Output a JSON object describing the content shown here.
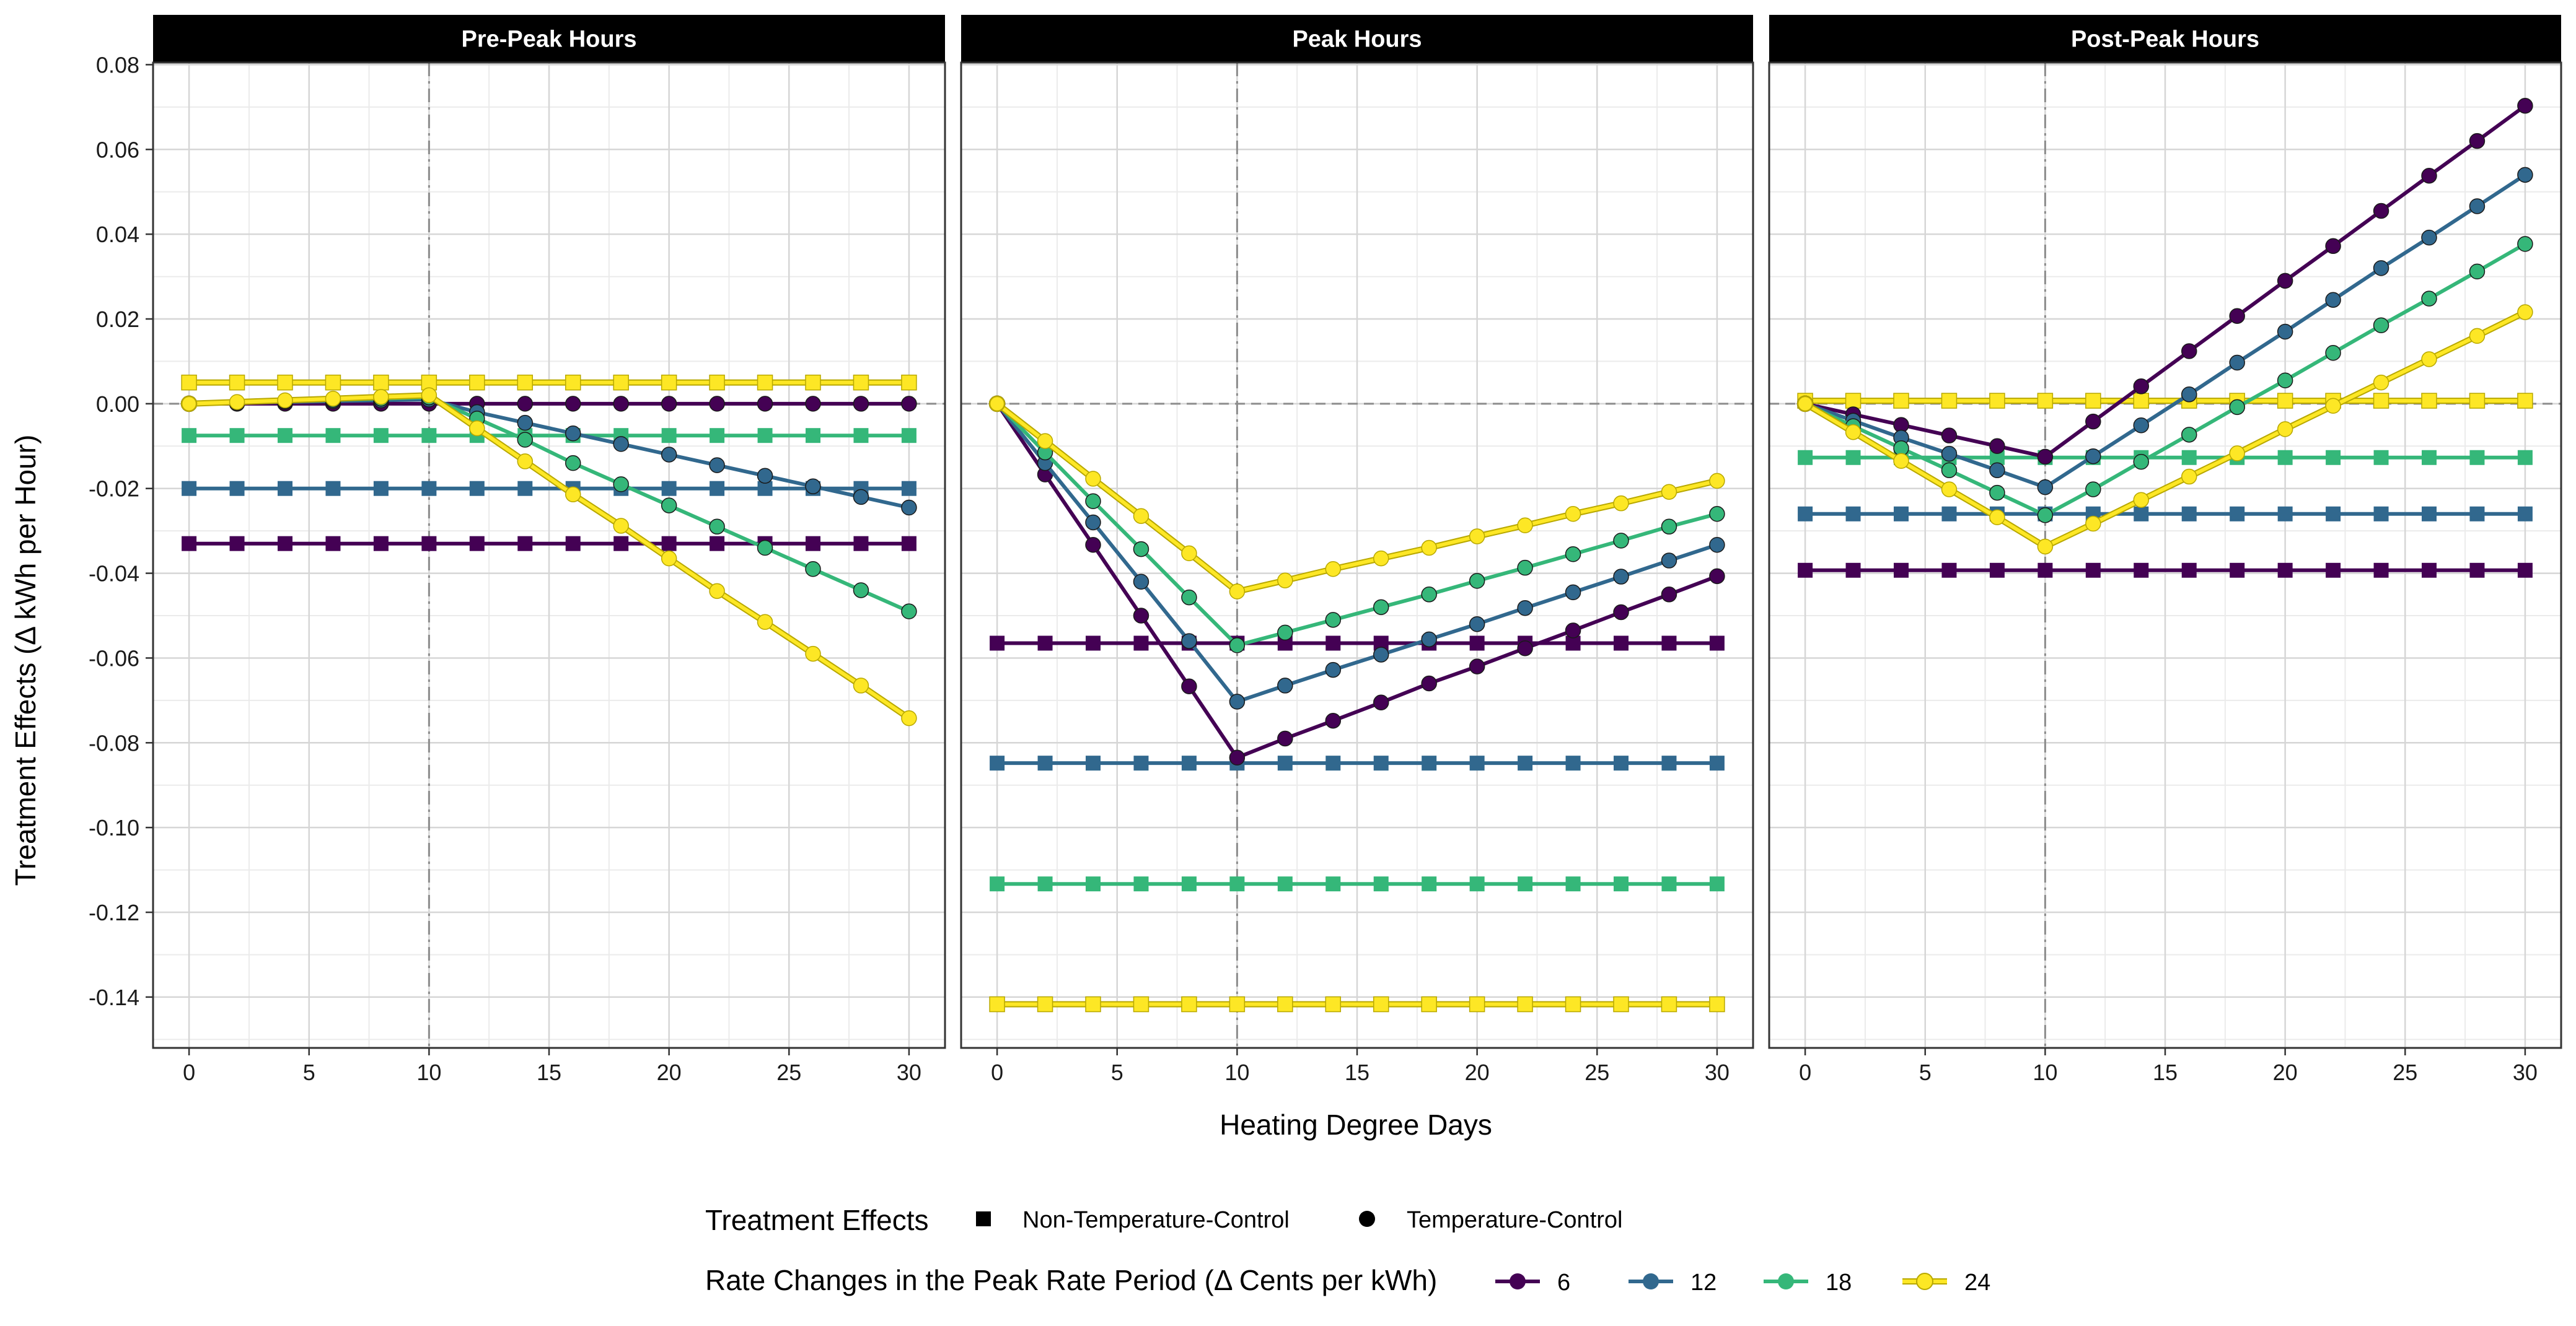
{
  "chart_data": {
    "type": "line",
    "facets": [
      "Pre-Peak Hours",
      "Peak Hours",
      "Post-Peak Hours"
    ],
    "xlabel": "Heating Degree Days",
    "ylabel": "Treatment Effects (Δ kWh per Hour)",
    "xlim": [
      -1.5,
      31.5
    ],
    "ylim": [
      -0.152,
      0.0805
    ],
    "x_ticks": [
      0,
      5,
      10,
      15,
      20,
      25,
      30
    ],
    "x_tick_labels": [
      "0",
      "5",
      "10",
      "15",
      "20",
      "25",
      "30"
    ],
    "y_ticks": [
      0.08,
      0.06,
      0.04,
      0.02,
      0.0,
      -0.02,
      -0.04,
      -0.06,
      -0.08,
      -0.1,
      -0.12,
      -0.14
    ],
    "y_tick_labels": [
      "0.08",
      "0.06",
      "0.04",
      "0.02",
      "0.00",
      "-0.02",
      "-0.04",
      "-0.06",
      "-0.08",
      "-0.10",
      "-0.12",
      "-0.14"
    ],
    "grid": true,
    "reference_lines": {
      "vertical_x": 10,
      "horizontal_y": 0
    },
    "x": [
      0,
      2,
      4,
      6,
      8,
      10,
      12,
      14,
      16,
      18,
      20,
      22,
      24,
      26,
      28,
      30
    ],
    "legend": {
      "placement": "bottom",
      "shape_title": "Treatment Effects",
      "shape_entries": [
        {
          "label": "Non-Temperature-Control",
          "shape": "square"
        },
        {
          "label": "Temperature-Control",
          "shape": "circle"
        }
      ],
      "color_title": "Rate Changes in the Peak Rate Period  (Δ Cents per kWh)",
      "color_entries": [
        {
          "label": "6",
          "color": "#440154"
        },
        {
          "label": "12",
          "color": "#31688e"
        },
        {
          "label": "18",
          "color": "#35b779"
        },
        {
          "label": "24",
          "color": "#fde725"
        }
      ]
    },
    "series_colors": {
      "6": "#440154",
      "12": "#31688e",
      "18": "#35b779",
      "24": "#fde725"
    },
    "panels": [
      {
        "facet": "Pre-Peak Hours",
        "non_temperature_control": {
          "6": -0.033,
          "12": -0.02,
          "18": -0.0075,
          "24": 0.005
        },
        "temperature_control": {
          "6": [
            0.0,
            0.0,
            0.0,
            0.0,
            0.0,
            0.0,
            0.0,
            0.0,
            0.0,
            0.0,
            0.0,
            0.0,
            0.0,
            0.0,
            0.0,
            0.0
          ],
          "12": [
            0.0,
            0.0002,
            0.0004,
            0.0006,
            0.0008,
            0.001,
            -0.002,
            -0.0045,
            -0.007,
            -0.0095,
            -0.012,
            -0.0145,
            -0.017,
            -0.0195,
            -0.022,
            -0.0245
          ],
          "18": [
            0.0,
            0.0003,
            0.0006,
            0.0009,
            0.0012,
            0.0015,
            -0.0035,
            -0.0085,
            -0.014,
            -0.019,
            -0.024,
            -0.029,
            -0.034,
            -0.039,
            -0.044,
            -0.049
          ],
          "24": [
            0.0,
            0.0004,
            0.0008,
            0.0012,
            0.0016,
            0.002,
            -0.0058,
            -0.0136,
            -0.0214,
            -0.0288,
            -0.0365,
            -0.0442,
            -0.0515,
            -0.059,
            -0.0665,
            -0.0742
          ]
        }
      },
      {
        "facet": "Peak Hours",
        "non_temperature_control": {
          "6": -0.0565,
          "12": -0.0848,
          "18": -0.1133,
          "24": -0.1417
        },
        "temperature_control": {
          "6": [
            0.0,
            -0.0167,
            -0.0333,
            -0.05,
            -0.0667,
            -0.0835,
            -0.079,
            -0.0748,
            -0.0705,
            -0.066,
            -0.062,
            -0.0577,
            -0.0535,
            -0.0492,
            -0.045,
            -0.0407
          ],
          "12": [
            0.0,
            -0.014,
            -0.028,
            -0.042,
            -0.056,
            -0.0703,
            -0.0665,
            -0.0628,
            -0.0592,
            -0.0556,
            -0.052,
            -0.0482,
            -0.0445,
            -0.0408,
            -0.037,
            -0.0333
          ],
          "18": [
            0.0,
            -0.0115,
            -0.023,
            -0.0343,
            -0.0457,
            -0.057,
            -0.054,
            -0.051,
            -0.048,
            -0.045,
            -0.0418,
            -0.0387,
            -0.0355,
            -0.0323,
            -0.029,
            -0.026
          ],
          "24": [
            0.0,
            -0.0088,
            -0.0177,
            -0.0265,
            -0.0353,
            -0.0443,
            -0.0417,
            -0.039,
            -0.0365,
            -0.034,
            -0.0313,
            -0.0287,
            -0.026,
            -0.0235,
            -0.0208,
            -0.0182
          ]
        }
      },
      {
        "facet": "Post-Peak Hours",
        "non_temperature_control": {
          "6": -0.0393,
          "12": -0.026,
          "18": -0.0127,
          "24": 0.0007
        },
        "temperature_control": {
          "6": [
            0.0,
            -0.0025,
            -0.005,
            -0.0075,
            -0.01,
            -0.0125,
            -0.0042,
            0.0041,
            0.0124,
            0.0207,
            0.029,
            0.0372,
            0.0455,
            0.0538,
            0.062,
            0.0703
          ],
          "12": [
            0.0,
            -0.004,
            -0.008,
            -0.0118,
            -0.0157,
            -0.0197,
            -0.0124,
            -0.0051,
            0.0022,
            0.0097,
            0.017,
            0.0245,
            0.032,
            0.0392,
            0.0466,
            0.054
          ],
          "18": [
            0.0,
            -0.0053,
            -0.0105,
            -0.0157,
            -0.021,
            -0.0263,
            -0.0202,
            -0.0137,
            -0.0073,
            -0.0008,
            0.0055,
            0.012,
            0.0185,
            0.0248,
            0.0312,
            0.0377
          ],
          "24": [
            0.0,
            -0.0067,
            -0.0135,
            -0.0202,
            -0.0268,
            -0.0337,
            -0.0283,
            -0.0227,
            -0.0172,
            -0.0117,
            -0.006,
            -0.0005,
            0.005,
            0.0105,
            0.016,
            0.0216
          ]
        }
      }
    ]
  }
}
